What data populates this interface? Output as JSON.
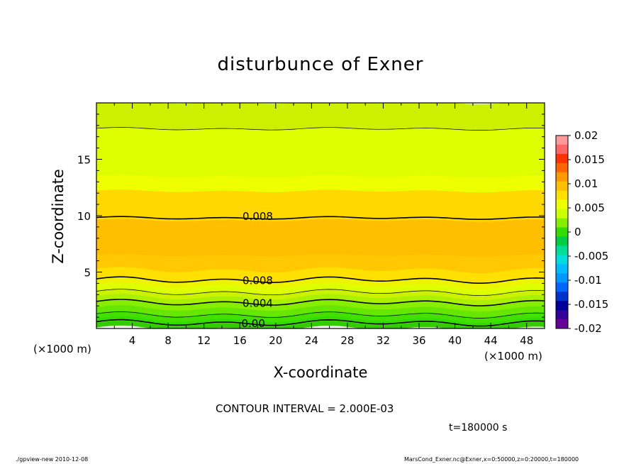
{
  "chart_data": {
    "type": "heatmap",
    "subtype": "filled-contour",
    "title": "disturbunce of Exner",
    "xlabel": "X-coordinate",
    "ylabel": "Z-coordinate",
    "x_unit_label": "(×1000 m)",
    "y_unit_label": "(×1000 m)",
    "xlim": [
      0,
      50
    ],
    "ylim": [
      0,
      20
    ],
    "x_ticks": [
      "4",
      "8",
      "12",
      "16",
      "20",
      "24",
      "28",
      "32",
      "36",
      "40",
      "44",
      "48"
    ],
    "y_ticks": [
      "5",
      "10",
      "15"
    ],
    "x_tick_values": [
      4,
      8,
      12,
      16,
      20,
      24,
      28,
      32,
      36,
      40,
      44,
      48
    ],
    "y_tick_values": [
      5,
      10,
      15
    ],
    "contour_interval_text": "CONTOUR INTERVAL = 2.000E-03",
    "contour_labels": [
      {
        "text": "0.008",
        "x": 18,
        "z": 10.0
      },
      {
        "text": "0.008",
        "x": 18,
        "z": 4.3
      },
      {
        "text": "0.004",
        "x": 18,
        "z": 2.3
      },
      {
        "text": "0.00",
        "x": 17.5,
        "z": 0.5
      }
    ],
    "bands": [
      {
        "z_min": 0.0,
        "z_max": 0.4,
        "color": "#33cc00"
      },
      {
        "z_min": 0.4,
        "z_max": 0.8,
        "color": "#33dd00"
      },
      {
        "z_min": 0.8,
        "z_max": 1.3,
        "color": "#44e000"
      },
      {
        "z_min": 1.3,
        "z_max": 1.8,
        "color": "#66e600"
      },
      {
        "z_min": 1.8,
        "z_max": 2.3,
        "color": "#88ee00"
      },
      {
        "z_min": 2.3,
        "z_max": 2.8,
        "color": "#aaf000"
      },
      {
        "z_min": 2.8,
        "z_max": 3.3,
        "color": "#ccf200"
      },
      {
        "z_min": 3.3,
        "z_max": 3.8,
        "color": "#ddff00"
      },
      {
        "z_min": 3.8,
        "z_max": 4.3,
        "color": "#eef400"
      },
      {
        "z_min": 4.3,
        "z_max": 5.2,
        "color": "#ffe000"
      },
      {
        "z_min": 5.2,
        "z_max": 6.5,
        "color": "#ffc800"
      },
      {
        "z_min": 6.5,
        "z_max": 9.6,
        "color": "#ffbf00"
      },
      {
        "z_min": 9.6,
        "z_max": 12.2,
        "color": "#ffd800"
      },
      {
        "z_min": 12.2,
        "z_max": 13.5,
        "color": "#eeff00"
      },
      {
        "z_min": 13.5,
        "z_max": 17.7,
        "color": "#ddff00"
      },
      {
        "z_min": 17.7,
        "z_max": 20.0,
        "color": "#ccf000"
      }
    ],
    "contour_lines_z": [
      0.5,
      1.2,
      2.3,
      3.2,
      4.3,
      9.8,
      17.7
    ],
    "colorbar": {
      "labels": [
        "0.02",
        "0.015",
        "0.01",
        "0.005",
        "0",
        "-0.005",
        "-0.01",
        "-0.015",
        "-0.02"
      ],
      "values": [
        0.02,
        0.015,
        0.01,
        0.005,
        0,
        -0.005,
        -0.01,
        -0.015,
        -0.02
      ],
      "colors": [
        "#ff9999",
        "#ff6666",
        "#ff3300",
        "#ff6600",
        "#ff9900",
        "#ffbf00",
        "#ffe000",
        "#eeff00",
        "#ccff00",
        "#88ee00",
        "#33dd00",
        "#00cc44",
        "#00dd99",
        "#00dddd",
        "#00bbff",
        "#0099ff",
        "#0066ff",
        "#0033cc",
        "#000099",
        "#330099",
        "#660099"
      ]
    }
  },
  "labels": {
    "title": "disturbunce of Exner",
    "xlabel": "X-coordinate",
    "ylabel": "Z-coordinate",
    "x_unit_left": "(×1000 m)",
    "x_unit_right": "(×1000 m)",
    "contour_interval": "CONTOUR INTERVAL = 2.000E-03",
    "time": "t=180000 s",
    "footer_left": "./gpview-new   2010-12-08",
    "footer_right": "MarsCond_Exner.nc@Exner,x=0:50000,z=0:20000,t=180000"
  }
}
